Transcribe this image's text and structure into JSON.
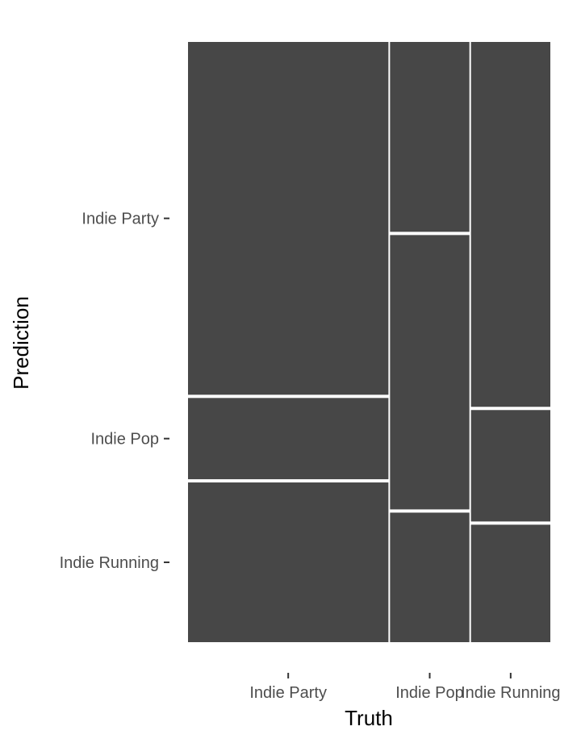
{
  "chart_data": {
    "type": "mosaic",
    "xlabel": "Truth",
    "ylabel": "Prediction",
    "x_categories": [
      "Indie Party",
      "Indie Pop",
      "Indie Running"
    ],
    "y_categories": [
      "Indie Party",
      "Indie Pop",
      "Indie Running"
    ],
    "column_widths": [
      0.554,
      0.222,
      0.222
    ],
    "cells": [
      {
        "truth": "Indie Party",
        "values": {
          "Indie Party": 0.59,
          "Indie Pop": 0.14,
          "Indie Running": 0.27
        }
      },
      {
        "truth": "Indie Pop",
        "values": {
          "Indie Party": 0.32,
          "Indie Pop": 0.46,
          "Indie Running": 0.22
        }
      },
      {
        "truth": "Indie Running",
        "values": {
          "Indie Party": 0.61,
          "Indie Pop": 0.19,
          "Indie Running": 0.2
        }
      }
    ],
    "fill_color": "#474747",
    "background_color": "#ffffff"
  }
}
